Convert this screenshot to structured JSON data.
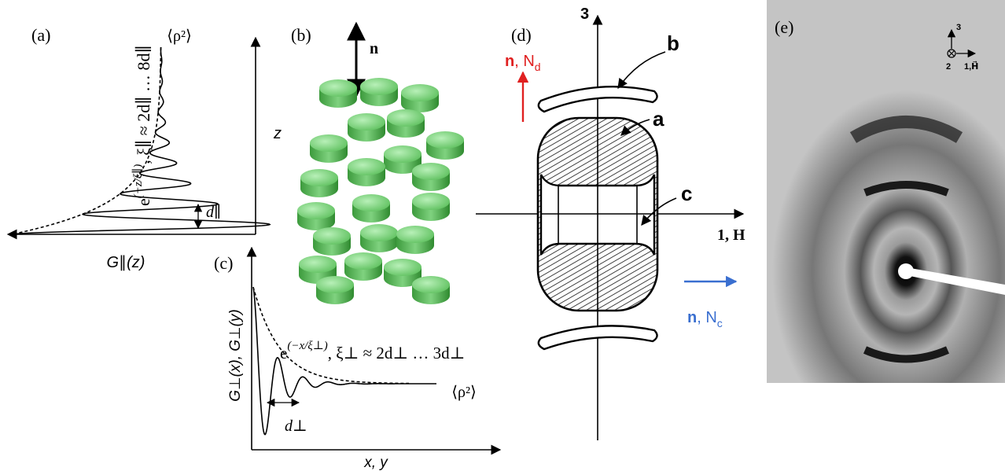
{
  "panels": {
    "a": {
      "label": "(a)",
      "formula_base": "e",
      "formula_exponent": "(−z/ξ∥)",
      "formula_rest": ", ξ∥ ≈ 2d∥ … 8d∥",
      "mean_label": "⟨ρ²⟩",
      "axis_label": "z",
      "period_label": "d∥",
      "function_label": "G∥(z)"
    },
    "b": {
      "label": "(b)",
      "director_label": "n"
    },
    "c": {
      "label": "(c)",
      "y_axis_label": "G⊥(x), G⊥(y)",
      "formula_base": "e",
      "formula_exponent": "(−x/ξ⊥)",
      "formula_rest": ", ξ⊥ ≈ 2d⊥ … 3d⊥",
      "mean_label": "⟨ρ²⟩",
      "period_label": "d⊥",
      "x_axis_label": "x, y"
    },
    "d": {
      "label": "(d)",
      "axis3_label": "3",
      "axis1_label": "1, H⃗",
      "b_label": "b",
      "a_label": "a",
      "c_label": "c",
      "red_bold": "n",
      "red_text": ", N",
      "red_sub": "d",
      "blue_bold": "n",
      "blue_text": ", N",
      "blue_sub": "c"
    },
    "e": {
      "label": "(e)",
      "axis3_label": "3",
      "axis2_label": "2",
      "axis1_label": "1,H⃗"
    }
  }
}
